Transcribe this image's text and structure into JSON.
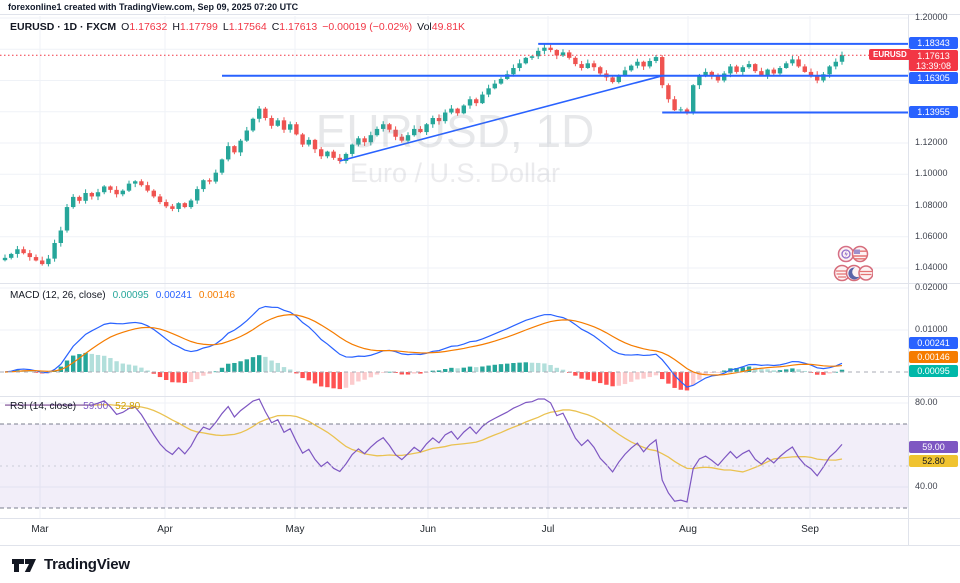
{
  "attribution": "forexonline1 created with TradingView.com, Sep 09, 2025 07:20 UTC",
  "symbol_legend": {
    "title": "EURUSD · 1D · FXCM",
    "o_label": "O",
    "o_value": "1.17632",
    "h_label": "H",
    "h_value": "1.17799",
    "l_label": "L",
    "l_value": "1.17564",
    "c_label": "C",
    "c_value": "1.17613",
    "change": "−0.00019 (−0.02%)",
    "vol_label": "Vol",
    "vol_value": "49.81K"
  },
  "watermark": {
    "line1": "EURUSD, 1D",
    "line2": "Euro / U.S. Dollar"
  },
  "price_axis": {
    "labels": [
      "1.20000",
      "1.12000",
      "1.10000",
      "1.08000",
      "1.06000",
      "1.04000"
    ]
  },
  "price_badges": {
    "symbol_tag": "EURUSD",
    "resistance": "1.18343",
    "current_price": "1.17613",
    "countdown": "13:39:08",
    "range_mid": "1.16305",
    "support": "1.13955"
  },
  "macd_pane": {
    "legend": "MACD (12, 26, close)",
    "hist_value": "0.00095",
    "macd_value": "0.00241",
    "signal_value": "0.00146",
    "axis_labels": [
      "0.02000",
      "0.01000"
    ]
  },
  "rsi_pane": {
    "legend": "RSI (14, close)",
    "rsi_value": "59.00",
    "ma_value": "52.80",
    "axis_labels": [
      "80.00",
      "40.00"
    ]
  },
  "time_axis": {
    "months": [
      "Mar",
      "Apr",
      "May",
      "Jun",
      "Jul",
      "Aug",
      "Sep"
    ]
  },
  "footer": {
    "brand": "TradingView"
  },
  "colors": {
    "up": "#26a69a",
    "down": "#ef5350",
    "level_blue": "#2962ff",
    "macd_blue": "#2962ff",
    "signal_orange": "#f57c00",
    "hist_grow_above": "#26a69a",
    "hist_fall_above": "#b2dfdb",
    "hist_grow_below": "#fccbcd",
    "hist_fall_below": "#ff5252",
    "rsi_purple": "#7e57c2",
    "rsi_ma_yellow": "#eac251",
    "current_red": "#f23645",
    "badge_blue": "#2962ff",
    "badge_red": "#f23645",
    "badge_teal": "#00b8a9",
    "badge_orange": "#f57c00",
    "badge_purple": "#7e57c2",
    "badge_yellow": "#f0c330",
    "grid": "#eff2f7"
  },
  "chart_data": {
    "type": "candlestick",
    "title": "EURUSD, 1D",
    "subtitle": "Euro / U.S. Dollar",
    "exchange": "FXCM",
    "x_axis_months": [
      "Mar",
      "Apr",
      "May",
      "Jun",
      "Jul",
      "Aug",
      "Sep"
    ],
    "price_axis_ticks": [
      1.2,
      1.18,
      1.16,
      1.14,
      1.12,
      1.1,
      1.08,
      1.06,
      1.04
    ],
    "ylim": [
      1.03,
      1.2025
    ],
    "last_bar": {
      "open": 1.17632,
      "high": 1.17799,
      "low": 1.17564,
      "close": 1.17613,
      "change": -0.00019,
      "change_pct": -0.02,
      "volume": "49.81K"
    },
    "closes": [
      1.0465,
      1.049,
      1.052,
      1.0495,
      1.047,
      1.0448,
      1.0425,
      1.046,
      1.056,
      1.064,
      1.079,
      1.0855,
      1.083,
      1.088,
      1.0858,
      1.0885,
      1.0922,
      1.09,
      1.0872,
      1.0895,
      1.094,
      1.0955,
      1.093,
      1.0895,
      1.0858,
      1.0822,
      1.0795,
      1.0778,
      1.0815,
      1.079,
      1.0832,
      1.0905,
      1.0962,
      1.0953,
      1.101,
      1.1095,
      1.118,
      1.114,
      1.1215,
      1.128,
      1.1355,
      1.142,
      1.136,
      1.131,
      1.1345,
      1.1285,
      1.132,
      1.1255,
      1.119,
      1.122,
      1.116,
      1.1115,
      1.1145,
      1.1105,
      1.1085,
      1.113,
      1.119,
      1.123,
      1.1205,
      1.125,
      1.129,
      1.132,
      1.1285,
      1.124,
      1.1215,
      1.125,
      1.129,
      1.127,
      1.132,
      1.136,
      1.134,
      1.1395,
      1.142,
      1.139,
      1.144,
      1.148,
      1.1455,
      1.151,
      1.155,
      1.158,
      1.161,
      1.164,
      1.168,
      1.171,
      1.1745,
      1.1755,
      1.179,
      1.181,
      1.1795,
      1.176,
      1.178,
      1.1745,
      1.1705,
      1.168,
      1.171,
      1.1685,
      1.1645,
      1.162,
      1.159,
      1.163,
      1.1665,
      1.1695,
      1.172,
      1.169,
      1.1725,
      1.175,
      1.157,
      1.148,
      1.141,
      1.1415,
      1.14,
      1.157,
      1.1635,
      1.1655,
      1.163,
      1.16,
      1.1645,
      1.169,
      1.1655,
      1.1685,
      1.1705,
      1.166,
      1.1635,
      1.167,
      1.1645,
      1.168,
      1.171,
      1.1735,
      1.169,
      1.1655,
      1.1635,
      1.16,
      1.164,
      1.169,
      1.172,
      1.17613
    ],
    "levels": [
      {
        "price": 1.18343,
        "start_index": 86
      },
      {
        "price": 1.16305,
        "start_index": 35
      },
      {
        "price": 1.13955,
        "start_index": 106
      }
    ],
    "trendline": {
      "from": {
        "index": 54,
        "price": 1.1085
      },
      "to": {
        "index": 106,
        "price": 1.163
      }
    },
    "current_price_line": 1.17613,
    "indicators": [
      {
        "name": "MACD",
        "params": [
          12,
          26,
          "close"
        ],
        "current": {
          "histogram": 0.00095,
          "macd": 0.00241,
          "signal": 0.00146
        },
        "axis_ticks": [
          0.02,
          0.01
        ]
      },
      {
        "name": "RSI",
        "params": [
          14,
          "close"
        ],
        "current": {
          "rsi": 59.0,
          "ma": 52.8
        },
        "bands": [
          70,
          50,
          30
        ],
        "axis_ticks": [
          80,
          40
        ]
      }
    ]
  }
}
